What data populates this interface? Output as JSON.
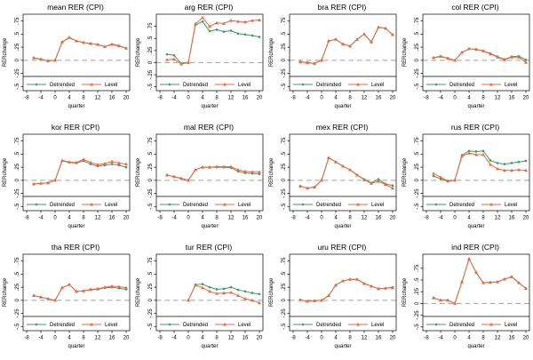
{
  "figure": {
    "x_label": "quarter",
    "y_label": "RERchange",
    "x_ticks": [
      -8,
      -4,
      0,
      4,
      8,
      12,
      16,
      20
    ],
    "y_ticks": [
      {
        "v": 0.75,
        "label": ".75"
      },
      {
        "v": 0.5,
        "label": ".5"
      },
      {
        "v": 0.25,
        "label": ".25"
      },
      {
        "v": 0,
        "label": "0"
      },
      {
        "v": -0.25,
        "label": "-.25"
      },
      {
        "v": -0.5,
        "label": "-.5"
      }
    ],
    "legend": [
      {
        "label": "Detrended",
        "marker": "dot-icon",
        "series": "detrended"
      },
      {
        "label": "Level",
        "marker": "triangle-icon",
        "series": "level"
      }
    ],
    "colors": {
      "detrended": "#3f9d5b",
      "level": "#f0663f",
      "zero_line": "#a0a0a0",
      "axis": "#000000"
    }
  },
  "chart_data": [
    {
      "type": "line",
      "id": "mean",
      "title": "mean RER (CPI)",
      "x": [
        -6,
        -4,
        -2,
        0,
        2,
        4,
        6,
        8,
        10,
        12,
        14,
        16,
        18,
        20
      ],
      "ylim": [
        -0.58,
        0.88
      ],
      "series": [
        {
          "name": "Detrended",
          "values": [
            0.04,
            0.02,
            -0.01,
            0,
            0.35,
            0.43,
            0.37,
            0.34,
            0.32,
            0.3,
            0.26,
            0.3,
            0.27,
            0.23
          ]
        },
        {
          "name": "Level",
          "values": [
            0.05,
            0.02,
            -0.01,
            0,
            0.35,
            0.44,
            0.37,
            0.34,
            0.32,
            0.3,
            0.26,
            0.31,
            0.28,
            0.23
          ]
        }
      ]
    },
    {
      "type": "line",
      "id": "arg",
      "title": "arg RER (CPI)",
      "x": [
        -6,
        -4,
        -2,
        0,
        2,
        4,
        6,
        8,
        10,
        12,
        14,
        16,
        18,
        20
      ],
      "ylim": [
        -0.58,
        1.0
      ],
      "series": [
        {
          "name": "Detrended",
          "values": [
            0.17,
            0.15,
            -0.02,
            0,
            0.78,
            0.85,
            0.65,
            0.68,
            0.64,
            0.66,
            0.6,
            0.58,
            0.56,
            0.53
          ]
        },
        {
          "name": "Level",
          "values": [
            0.06,
            0.07,
            -0.03,
            0,
            0.8,
            0.93,
            0.75,
            0.82,
            0.81,
            0.87,
            0.85,
            0.84,
            0.87,
            0.88
          ]
        }
      ]
    },
    {
      "type": "line",
      "id": "bra",
      "title": "bra RER (CPI)",
      "x": [
        -6,
        -4,
        -2,
        0,
        2,
        4,
        6,
        8,
        10,
        12,
        14,
        16,
        18,
        20
      ],
      "ylim": [
        -0.58,
        0.88
      ],
      "series": [
        {
          "name": "Detrended",
          "values": [
            -0.03,
            -0.04,
            -0.06,
            0,
            0.37,
            0.4,
            0.31,
            0.27,
            0.4,
            0.5,
            0.35,
            0.63,
            0.61,
            0.49
          ]
        },
        {
          "name": "Level",
          "values": [
            -0.03,
            -0.05,
            -0.06,
            0,
            0.37,
            0.4,
            0.31,
            0.27,
            0.4,
            0.5,
            0.35,
            0.63,
            0.61,
            0.49
          ]
        }
      ]
    },
    {
      "type": "line",
      "id": "col",
      "title": "col RER (CPI)",
      "x": [
        -6,
        -4,
        -2,
        0,
        2,
        4,
        6,
        8,
        10,
        12,
        14,
        16,
        18,
        20
      ],
      "ylim": [
        -0.58,
        0.88
      ],
      "series": [
        {
          "name": "Detrended",
          "values": [
            0.05,
            0.07,
            0.04,
            0,
            0.15,
            0.22,
            0.21,
            0.18,
            0.13,
            0.07,
            0.02,
            0.07,
            0.08,
            0.01
          ]
        },
        {
          "name": "Level",
          "values": [
            0.05,
            0.08,
            0.04,
            0,
            0.15,
            0.22,
            0.21,
            0.18,
            0.12,
            0.06,
            0.01,
            0.06,
            0.06,
            -0.04
          ]
        }
      ]
    },
    {
      "type": "line",
      "id": "kor",
      "title": "kor RER (CPI)",
      "x": [
        -6,
        -4,
        -2,
        0,
        2,
        4,
        6,
        8,
        10,
        12,
        14,
        16,
        18,
        20
      ],
      "ylim": [
        -0.58,
        0.88
      ],
      "series": [
        {
          "name": "Detrended",
          "values": [
            -0.07,
            -0.06,
            -0.05,
            0,
            0.37,
            0.34,
            0.33,
            0.37,
            0.31,
            0.27,
            0.29,
            0.31,
            0.29,
            0.25
          ]
        },
        {
          "name": "Level",
          "values": [
            -0.07,
            -0.06,
            -0.05,
            0,
            0.38,
            0.35,
            0.34,
            0.4,
            0.34,
            0.3,
            0.32,
            0.36,
            0.33,
            0.31
          ]
        }
      ]
    },
    {
      "type": "line",
      "id": "mal",
      "title": "mal RER (CPI)",
      "x": [
        -6,
        -4,
        -2,
        0,
        2,
        4,
        6,
        8,
        10,
        12,
        14,
        16,
        18,
        20
      ],
      "ylim": [
        -0.58,
        0.88
      ],
      "series": [
        {
          "name": "Detrended",
          "values": [
            0.1,
            0.07,
            0.03,
            0,
            0.2,
            0.25,
            0.25,
            0.25,
            0.25,
            0.24,
            0.17,
            0.14,
            0.13,
            0.12
          ]
        },
        {
          "name": "Level",
          "values": [
            0.1,
            0.07,
            0.04,
            0,
            0.2,
            0.25,
            0.25,
            0.26,
            0.26,
            0.26,
            0.2,
            0.17,
            0.16,
            0.16
          ]
        }
      ]
    },
    {
      "type": "line",
      "id": "mex",
      "title": "mex RER (CPI)",
      "x": [
        -6,
        -4,
        -2,
        0,
        2,
        4,
        6,
        8,
        10,
        12,
        14,
        16,
        18,
        20
      ],
      "ylim": [
        -0.58,
        0.88
      ],
      "series": [
        {
          "name": "Detrended",
          "values": [
            -0.11,
            -0.15,
            -0.13,
            0,
            0.43,
            0.35,
            0.27,
            0.2,
            0.1,
            0.02,
            -0.05,
            0.02,
            -0.07,
            -0.1
          ]
        },
        {
          "name": "Level",
          "values": [
            -0.11,
            -0.15,
            -0.13,
            0,
            0.43,
            0.35,
            0.27,
            0.2,
            0.1,
            0.01,
            -0.06,
            -0.02,
            -0.08,
            -0.15
          ]
        }
      ]
    },
    {
      "type": "line",
      "id": "rus",
      "title": "rus RER (CPI)",
      "x": [
        -6,
        -4,
        -2,
        0,
        2,
        4,
        6,
        8,
        10,
        12,
        14,
        16,
        18,
        20
      ],
      "ylim": [
        -0.58,
        0.88
      ],
      "series": [
        {
          "name": "Detrended",
          "values": [
            0.08,
            0.03,
            -0.02,
            0,
            0.48,
            0.56,
            0.55,
            0.56,
            0.38,
            0.33,
            0.31,
            0.33,
            0.35,
            0.37
          ]
        },
        {
          "name": "Level",
          "values": [
            0.13,
            0.06,
            -0.01,
            0,
            0.46,
            0.52,
            0.49,
            0.49,
            0.3,
            0.22,
            0.19,
            0.19,
            0.2,
            0.19
          ]
        }
      ]
    },
    {
      "type": "line",
      "id": "tha",
      "title": "tha RER (CPI)",
      "x": [
        -6,
        -4,
        -2,
        0,
        2,
        4,
        6,
        8,
        10,
        12,
        14,
        16,
        18,
        20
      ],
      "ylim": [
        -0.58,
        0.88
      ],
      "series": [
        {
          "name": "Detrended",
          "values": [
            0.09,
            0.06,
            0.03,
            0,
            0.24,
            0.3,
            0.17,
            0.18,
            0.2,
            0.21,
            0.24,
            0.25,
            0.23,
            0.21
          ]
        },
        {
          "name": "Level",
          "values": [
            0.09,
            0.06,
            0.03,
            0,
            0.24,
            0.3,
            0.17,
            0.18,
            0.21,
            0.22,
            0.25,
            0.27,
            0.26,
            0.24
          ]
        }
      ]
    },
    {
      "type": "line",
      "id": "tur",
      "title": "tur RER (CPI)",
      "x": [
        -6,
        -4,
        -2,
        0,
        2,
        4,
        6,
        8,
        10,
        12,
        14,
        16,
        18,
        20
      ],
      "ylim": [
        -0.58,
        0.88
      ],
      "series": [
        {
          "name": "Detrended",
          "values": [
            null,
            null,
            null,
            0,
            0.3,
            0.31,
            0.25,
            0.21,
            0.22,
            0.25,
            0.2,
            0.17,
            0.14,
            0.12
          ]
        },
        {
          "name": "Level",
          "values": [
            null,
            null,
            null,
            0,
            0.29,
            0.24,
            0.17,
            0.13,
            0.14,
            0.15,
            0.09,
            0.03,
            0.0,
            -0.05
          ]
        }
      ]
    },
    {
      "type": "line",
      "id": "uru",
      "title": "uru RER (CPI)",
      "x": [
        -6,
        -4,
        -2,
        0,
        2,
        4,
        6,
        8,
        10,
        12,
        14,
        16,
        18,
        20
      ],
      "ylim": [
        -0.58,
        0.88
      ],
      "series": [
        {
          "name": "Detrended",
          "values": [
            0.01,
            -0.02,
            -0.01,
            0,
            0.09,
            0.29,
            0.37,
            0.4,
            0.4,
            0.32,
            0.27,
            0.22,
            0.23,
            0.25
          ]
        },
        {
          "name": "Level",
          "values": [
            0.01,
            -0.02,
            -0.01,
            0,
            0.09,
            0.29,
            0.37,
            0.4,
            0.4,
            0.32,
            0.27,
            0.22,
            0.23,
            0.24
          ]
        }
      ]
    },
    {
      "type": "line",
      "id": "ind",
      "title": "ind RER (CPI)",
      "x": [
        -6,
        -4,
        -2,
        0,
        2,
        4,
        6,
        8,
        10,
        12,
        14,
        16,
        18,
        20
      ],
      "ylim": [
        -0.58,
        1.05
      ],
      "series": [
        {
          "name": "Detrended",
          "values": [
            0.12,
            0.07,
            0.07,
            0,
            0.46,
            0.95,
            0.66,
            0.44,
            0.45,
            0.46,
            0.52,
            0.57,
            0.44,
            0.32
          ]
        },
        {
          "name": "Level",
          "values": [
            0.12,
            0.07,
            0.07,
            0,
            0.46,
            0.95,
            0.66,
            0.44,
            0.45,
            0.46,
            0.52,
            0.57,
            0.44,
            0.32
          ]
        }
      ]
    }
  ]
}
